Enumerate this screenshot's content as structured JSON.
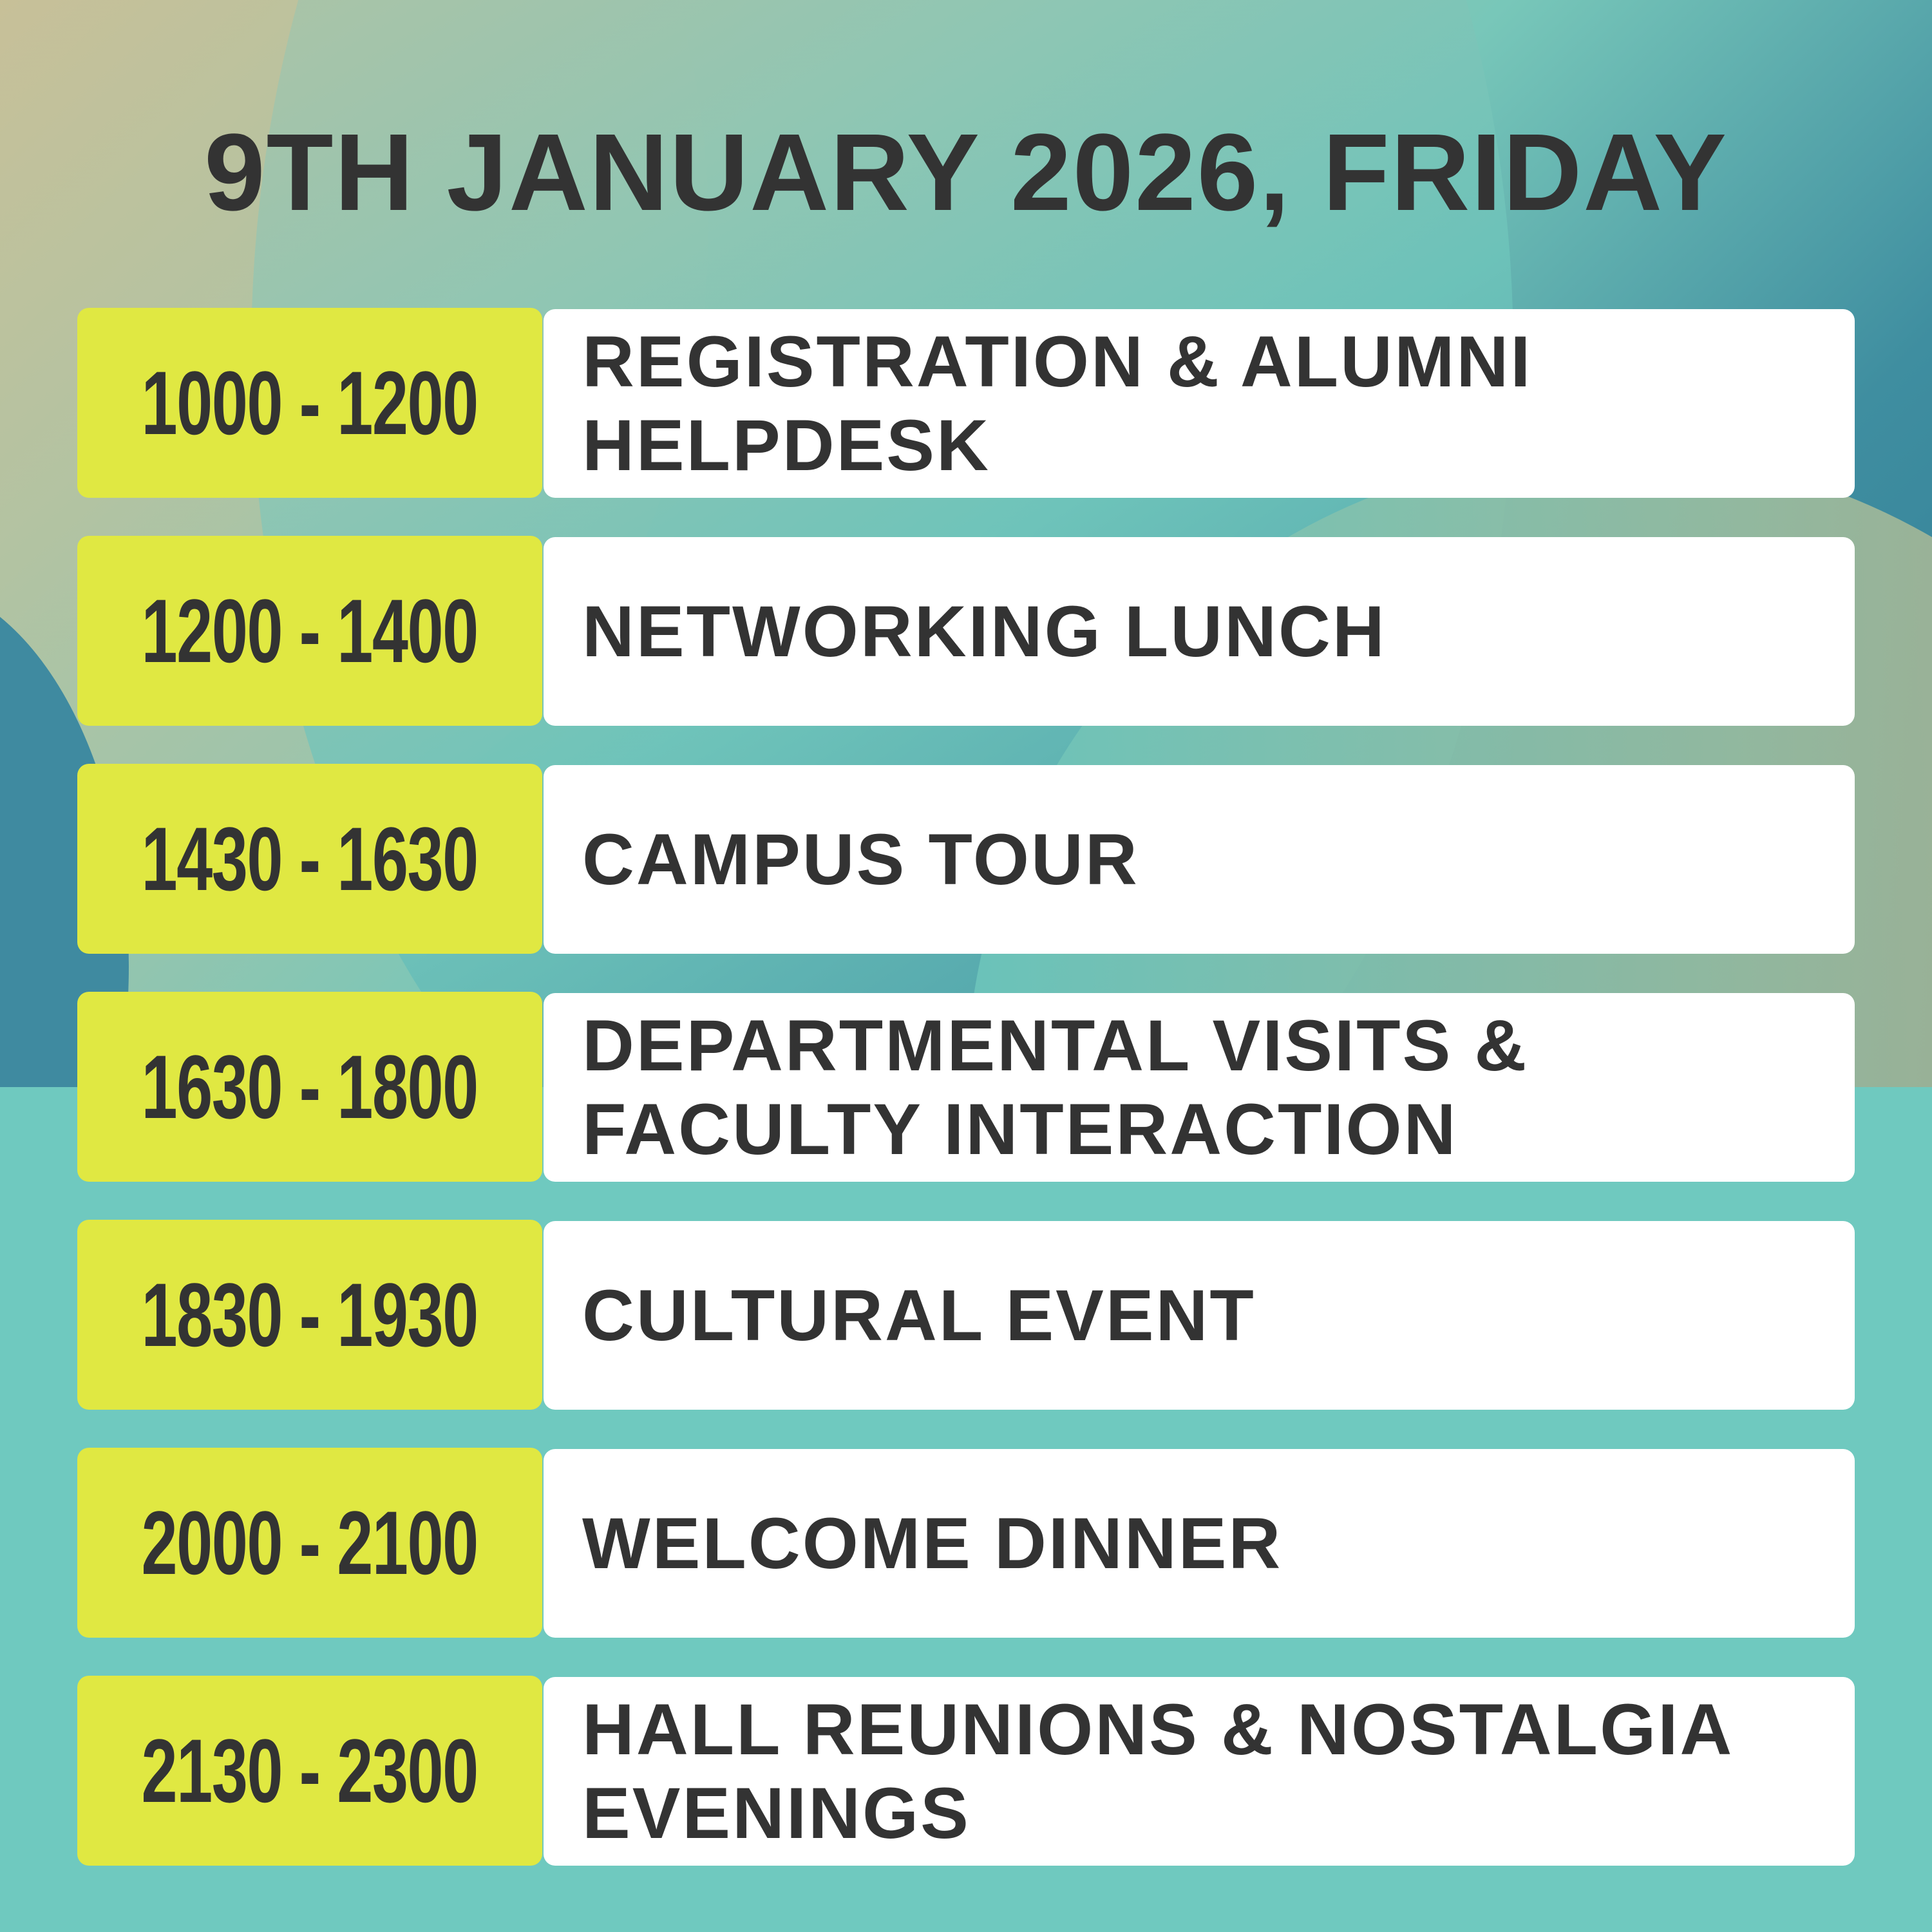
{
  "title": "9TH JANUARY 2026, FRIDAY",
  "colors": {
    "time_bg": "#e0e842",
    "event_bg": "#ffffff",
    "text": "#333333",
    "background": "#6fc9bf"
  },
  "schedule": [
    {
      "time": "1000 - 1200",
      "event": "REGISTRATION & ALUMNI HELPDESK"
    },
    {
      "time": "1200 - 1400",
      "event": "NETWORKING LUNCH"
    },
    {
      "time": "1430 - 1630",
      "event": "CAMPUS TOUR"
    },
    {
      "time": "1630 - 1800",
      "event": "DEPARTMENTAL VISITS & FACULTY INTERACTION"
    },
    {
      "time": "1830 - 1930",
      "event": "CULTURAL EVENT"
    },
    {
      "time": "2000 - 2100",
      "event": "WELCOME DINNER"
    },
    {
      "time": "2130 - 2300",
      "event": "HALL REUNIONS & NOSTALGIA EVENINGS"
    }
  ]
}
